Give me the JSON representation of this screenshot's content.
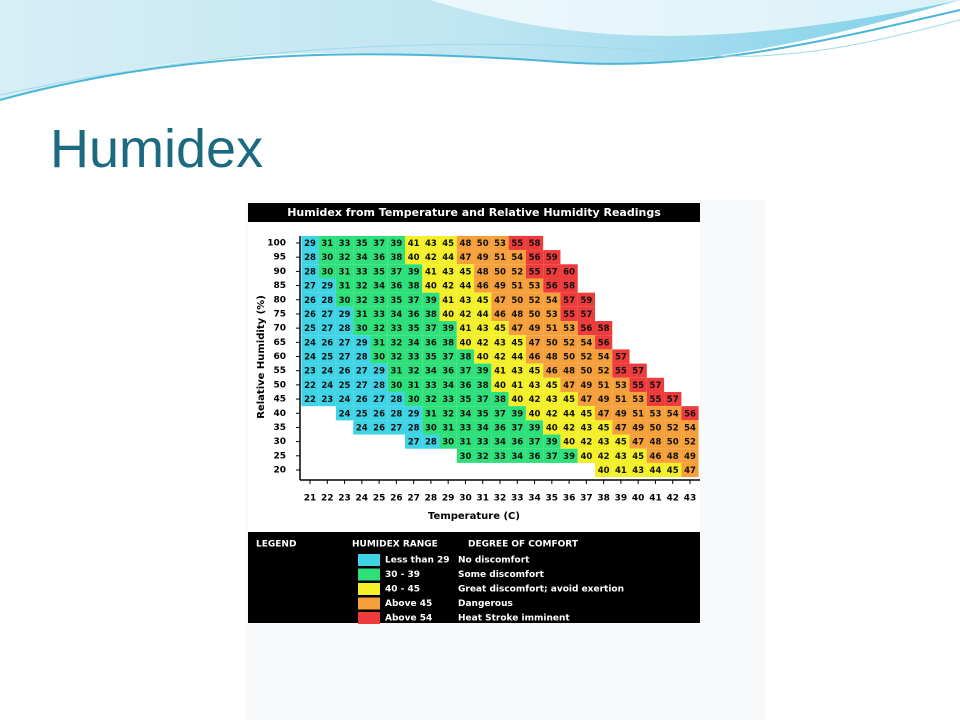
{
  "header": {
    "title": "Humidex"
  },
  "table": {
    "title": "Humidex from Temperature and Relative Humidity Readings",
    "x_label": "Temperature (C)",
    "y_label": "Relative Humidity (%)",
    "temperatures": [
      21,
      22,
      23,
      24,
      25,
      26,
      27,
      28,
      29,
      30,
      31,
      32,
      33,
      34,
      35,
      36,
      37,
      38,
      39,
      40,
      41,
      42,
      43
    ],
    "rows": [
      {
        "humidity": 100,
        "values": [
          29,
          31,
          33,
          35,
          37,
          39,
          41,
          43,
          45,
          48,
          50,
          53,
          55,
          58,
          null,
          null,
          null,
          null,
          null,
          null,
          null,
          null,
          null
        ]
      },
      {
        "humidity": 95,
        "values": [
          28,
          30,
          32,
          34,
          36,
          38,
          40,
          42,
          44,
          47,
          49,
          51,
          54,
          56,
          59,
          null,
          null,
          null,
          null,
          null,
          null,
          null,
          null
        ]
      },
      {
        "humidity": 90,
        "values": [
          28,
          30,
          31,
          33,
          35,
          37,
          39,
          41,
          43,
          45,
          48,
          50,
          52,
          55,
          57,
          60,
          null,
          null,
          null,
          null,
          null,
          null,
          null
        ]
      },
      {
        "humidity": 85,
        "values": [
          27,
          29,
          31,
          32,
          34,
          36,
          38,
          40,
          42,
          44,
          46,
          49,
          51,
          53,
          56,
          58,
          null,
          null,
          null,
          null,
          null,
          null,
          null
        ]
      },
      {
        "humidity": 80,
        "values": [
          26,
          28,
          30,
          32,
          33,
          35,
          37,
          39,
          41,
          43,
          45,
          47,
          50,
          52,
          54,
          57,
          59,
          null,
          null,
          null,
          null,
          null,
          null
        ]
      },
      {
        "humidity": 75,
        "values": [
          26,
          27,
          29,
          31,
          33,
          34,
          36,
          38,
          40,
          42,
          44,
          46,
          48,
          50,
          53,
          55,
          57,
          null,
          null,
          null,
          null,
          null,
          null
        ]
      },
      {
        "humidity": 70,
        "values": [
          25,
          27,
          28,
          30,
          32,
          33,
          35,
          37,
          39,
          41,
          43,
          45,
          47,
          49,
          51,
          53,
          56,
          58,
          null,
          null,
          null,
          null,
          null
        ]
      },
      {
        "humidity": 65,
        "values": [
          24,
          26,
          27,
          29,
          31,
          32,
          34,
          36,
          38,
          40,
          42,
          43,
          45,
          47,
          50,
          52,
          54,
          56,
          null,
          null,
          null,
          null,
          null
        ]
      },
      {
        "humidity": 60,
        "values": [
          24,
          25,
          27,
          28,
          30,
          32,
          33,
          35,
          37,
          38,
          40,
          42,
          44,
          46,
          48,
          50,
          52,
          54,
          57,
          null,
          null,
          null,
          null
        ]
      },
      {
        "humidity": 55,
        "values": [
          23,
          24,
          26,
          27,
          29,
          31,
          32,
          34,
          36,
          37,
          39,
          41,
          43,
          45,
          46,
          48,
          50,
          52,
          55,
          57,
          null,
          null,
          null
        ]
      },
      {
        "humidity": 50,
        "values": [
          22,
          24,
          25,
          27,
          28,
          30,
          31,
          33,
          34,
          36,
          38,
          40,
          41,
          43,
          45,
          47,
          49,
          51,
          53,
          55,
          57,
          null,
          null
        ]
      },
      {
        "humidity": 45,
        "values": [
          22,
          23,
          24,
          26,
          27,
          28,
          30,
          32,
          33,
          35,
          37,
          38,
          40,
          42,
          43,
          45,
          47,
          49,
          51,
          53,
          55,
          57,
          null
        ]
      },
      {
        "humidity": 40,
        "values": [
          null,
          null,
          24,
          25,
          26,
          28,
          29,
          31,
          32,
          34,
          35,
          37,
          39,
          40,
          42,
          44,
          45,
          47,
          49,
          51,
          53,
          54,
          56
        ]
      },
      {
        "humidity": 35,
        "values": [
          null,
          null,
          null,
          24,
          26,
          27,
          28,
          30,
          31,
          33,
          34,
          36,
          37,
          39,
          40,
          42,
          43,
          45,
          47,
          49,
          50,
          52,
          54
        ]
      },
      {
        "humidity": 30,
        "values": [
          null,
          null,
          null,
          null,
          null,
          null,
          27,
          28,
          30,
          31,
          33,
          34,
          36,
          37,
          39,
          40,
          42,
          43,
          45,
          47,
          48,
          50,
          52
        ]
      },
      {
        "humidity": 25,
        "values": [
          null,
          null,
          null,
          null,
          null,
          null,
          null,
          null,
          null,
          30,
          32,
          33,
          34,
          36,
          37,
          39,
          40,
          42,
          43,
          45,
          46,
          48,
          49
        ]
      },
      {
        "humidity": 20,
        "values": [
          null,
          null,
          null,
          null,
          null,
          null,
          null,
          null,
          null,
          null,
          null,
          null,
          null,
          null,
          null,
          null,
          null,
          40,
          41,
          43,
          44,
          45,
          47
        ]
      }
    ],
    "legend": {
      "title": "LEGEND",
      "range_header": "HUMIDEX RANGE",
      "comfort_header": "DEGREE OF COMFORT",
      "items": [
        {
          "range": "Less than 29",
          "comfort": "No discomfort",
          "color": "#3fd3e6",
          "max": 29
        },
        {
          "range": "30 - 39",
          "comfort": "Some discomfort",
          "color": "#2ee07a",
          "max": 39
        },
        {
          "range": "40 - 45",
          "comfort": "Great discomfort; avoid exertion",
          "color": "#f3f02a",
          "max": 45
        },
        {
          "range": "Above 45",
          "comfort": "Dangerous",
          "color": "#f5a03a",
          "max": 54
        },
        {
          "range": "Above 54",
          "comfort": "Heat Stroke imminent",
          "color": "#ee3b3b",
          "max": null
        }
      ]
    }
  }
}
